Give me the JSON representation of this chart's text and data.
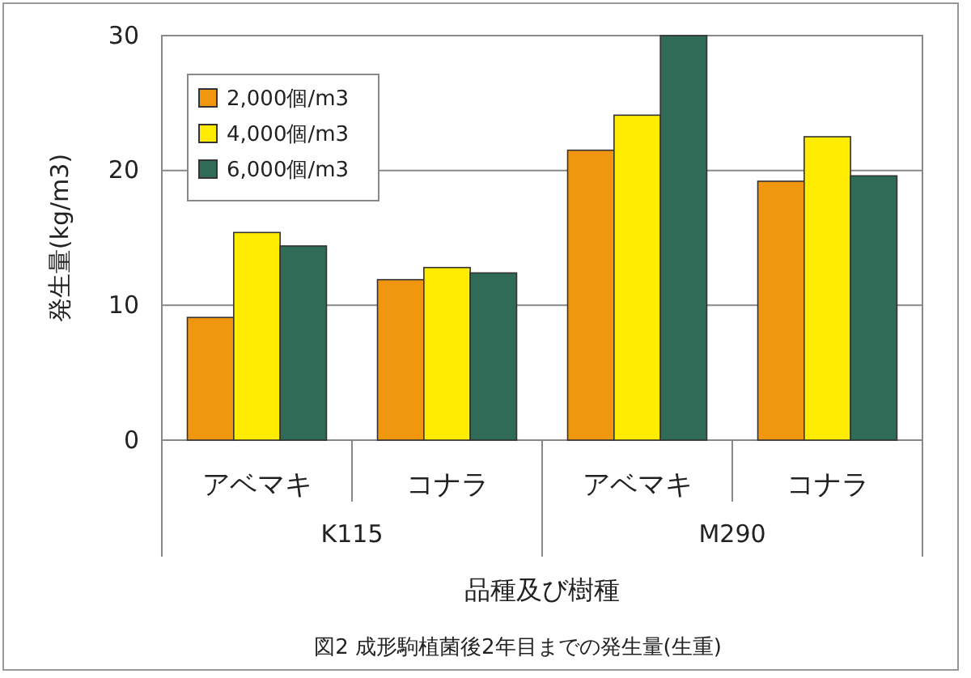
{
  "chart_data": {
    "type": "bar",
    "title": "図2 成形駒植菌後2年目までの発生量(生重)",
    "xlabel": "品種及び樹種",
    "ylabel": "発生量(kg/m3)",
    "categories": [
      "アベマキ",
      "コナラ",
      "アベマキ",
      "コナラ"
    ],
    "annotations": [
      "K115",
      "M290"
    ],
    "series": [
      {
        "name": "2,000個/m3",
        "color": "#f0960f",
        "values": [
          9.1,
          11.9,
          21.5,
          19.2
        ]
      },
      {
        "name": "4,000個/m3",
        "color": "#ffec00",
        "values": [
          15.4,
          12.8,
          24.1,
          22.5
        ]
      },
      {
        "name": "6,000個/m3",
        "color": "#2f6b57",
        "values": [
          14.4,
          12.4,
          30,
          19.6
        ]
      }
    ],
    "ylim": [
      0,
      30
    ],
    "yticks": [
      0,
      10,
      20,
      30
    ],
    "grid": "y",
    "legend": "top left"
  }
}
